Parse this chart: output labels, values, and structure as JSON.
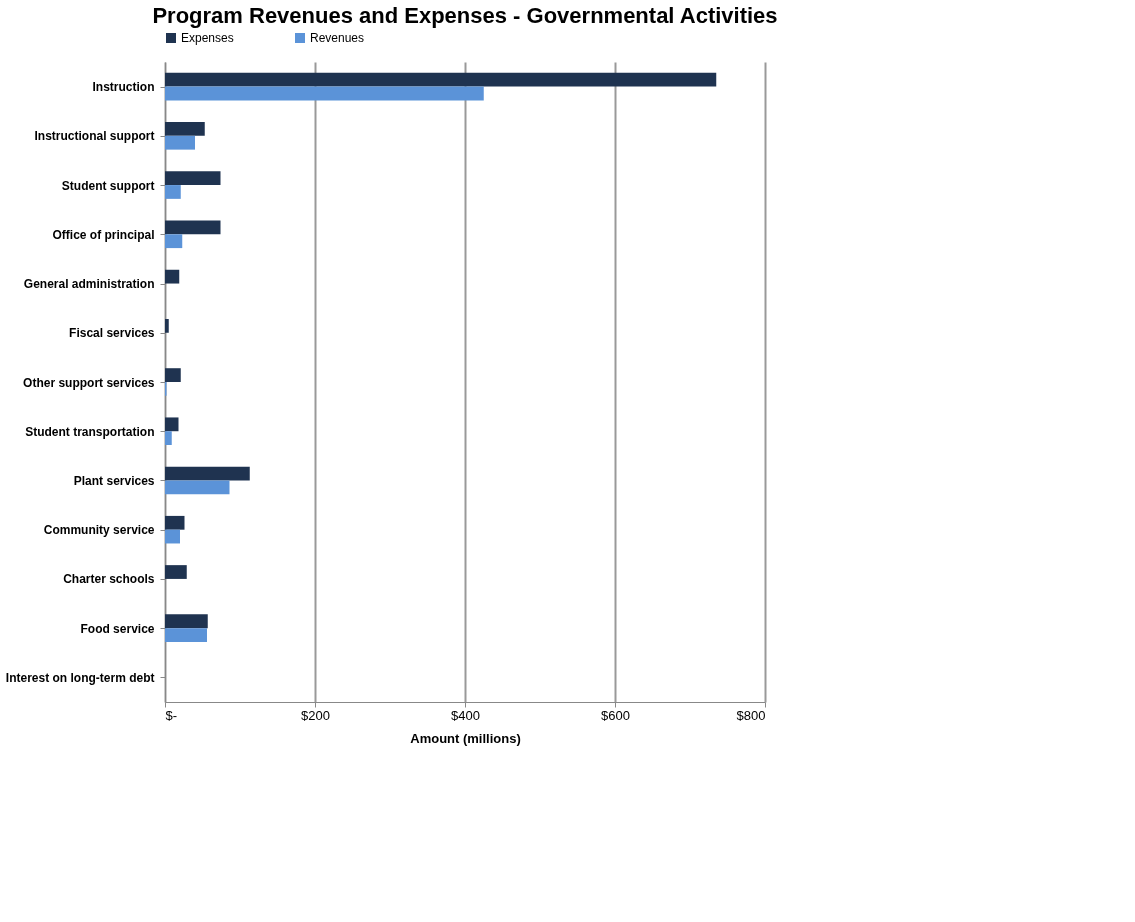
{
  "chart_data": {
    "type": "bar",
    "orientation": "horizontal",
    "title": "Program Revenues and Expenses - Governmental Activities",
    "xlabel": "Amount (millions)",
    "categories": [
      "Instruction",
      "Instructional support",
      "Student support",
      "Office of principal",
      "General administration",
      "Fiscal services",
      "Other support services",
      "Student transportation",
      "Plant services",
      "Community service",
      "Charter schools",
      "Food service",
      "Interest on long-term debt"
    ],
    "series": [
      {
        "name": "Expenses",
        "color": "#1f3350",
        "values": [
          735,
          53,
          74,
          74,
          19,
          5,
          21,
          18,
          113,
          26,
          29,
          57,
          0
        ]
      },
      {
        "name": "Revenues",
        "color": "#5b93d8",
        "values": [
          425,
          40,
          21,
          23,
          0,
          0,
          2,
          9,
          86,
          20,
          0,
          56,
          0
        ]
      }
    ],
    "xlim": [
      0,
      800
    ],
    "xticks": [
      {
        "value": 0,
        "label": "$-"
      },
      {
        "value": 200,
        "label": "$200"
      },
      {
        "value": 400,
        "label": "$400"
      },
      {
        "value": 600,
        "label": "$600"
      },
      {
        "value": 800,
        "label": "$800"
      }
    ],
    "grid": "x",
    "legend": "top"
  }
}
